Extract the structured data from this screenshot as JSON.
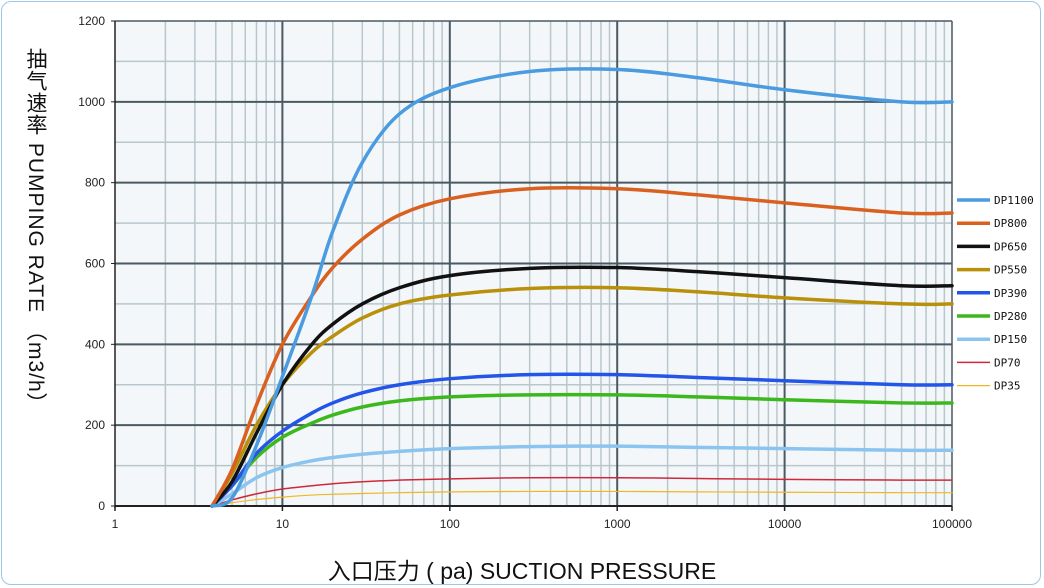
{
  "chart_data": {
    "type": "line",
    "xlabel": "入口压力 ( pa) SUCTION PRESSURE",
    "ylabel": "抽气速率 PUMPING RATE （m3/h）",
    "xscale": "log",
    "xlim": [
      1,
      100000
    ],
    "ylim": [
      0,
      1200
    ],
    "xticks": [
      "1",
      "10",
      "100",
      "1000",
      "10000",
      "100000"
    ],
    "yticks": [
      "0",
      "200",
      "400",
      "600",
      "800",
      "1000",
      "1200"
    ],
    "grid": true,
    "legend": "right",
    "x": [
      3.8,
      5,
      7,
      10,
      15,
      20,
      30,
      50,
      100,
      300,
      1000,
      3000,
      10000,
      50000,
      100000
    ],
    "series": [
      {
        "name": "DP1100",
        "color": "#4a9be0",
        "width": 3.5,
        "values": [
          0,
          20,
          150,
          320,
          520,
          680,
          850,
          970,
          1035,
          1075,
          1080,
          1060,
          1030,
          1000,
          1000
        ]
      },
      {
        "name": "DP800",
        "color": "#d9601f",
        "width": 3.5,
        "values": [
          0,
          90,
          250,
          400,
          520,
          590,
          660,
          720,
          760,
          785,
          785,
          770,
          750,
          725,
          725
        ]
      },
      {
        "name": "DP650",
        "color": "#111111",
        "width": 3.5,
        "values": [
          0,
          60,
          180,
          300,
          400,
          450,
          500,
          540,
          570,
          588,
          590,
          580,
          565,
          545,
          545
        ]
      },
      {
        "name": "DP550",
        "color": "#b8900a",
        "width": 3.5,
        "values": [
          0,
          80,
          200,
          300,
          380,
          420,
          465,
          500,
          522,
          538,
          540,
          530,
          515,
          500,
          500
        ]
      },
      {
        "name": "DP390",
        "color": "#2255e8",
        "width": 3.5,
        "values": [
          0,
          50,
          130,
          185,
          230,
          255,
          280,
          300,
          315,
          325,
          325,
          318,
          310,
          300,
          300
        ]
      },
      {
        "name": "DP280",
        "color": "#3cb81e",
        "width": 3.5,
        "values": [
          0,
          50,
          120,
          170,
          205,
          225,
          245,
          260,
          270,
          275,
          275,
          270,
          263,
          255,
          255
        ]
      },
      {
        "name": "DP150",
        "color": "#8cc4f0",
        "width": 3.5,
        "values": [
          0,
          30,
          70,
          95,
          112,
          120,
          128,
          135,
          142,
          147,
          148,
          145,
          142,
          138,
          138
        ]
      },
      {
        "name": "DP70",
        "color": "#d0283a",
        "width": 1.5,
        "values": [
          0,
          15,
          30,
          42,
          50,
          55,
          60,
          64,
          67,
          70,
          70,
          68,
          66,
          64,
          64
        ]
      },
      {
        "name": "DP35",
        "color": "#f0b820",
        "width": 1.2,
        "values": [
          0,
          8,
          16,
          22,
          27,
          29,
          31,
          33,
          35,
          36,
          36,
          35,
          34,
          33,
          33
        ]
      }
    ]
  }
}
